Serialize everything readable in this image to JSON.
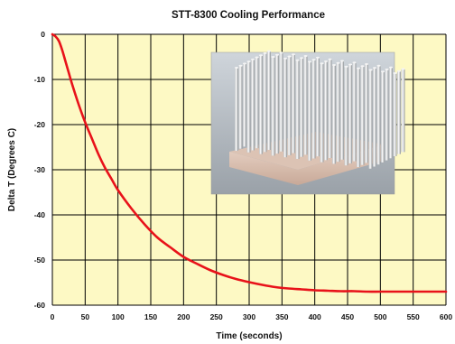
{
  "chart_data": {
    "type": "line",
    "title": "STT-8300 Cooling Performance",
    "xlabel": "Time (seconds)",
    "ylabel": "Delta T (Degrees C)",
    "xlim": [
      0,
      600
    ],
    "ylim": [
      -60,
      0
    ],
    "xticks": [
      0,
      50,
      100,
      150,
      200,
      250,
      300,
      350,
      400,
      450,
      500,
      550,
      600
    ],
    "yticks": [
      0,
      -10,
      -20,
      -30,
      -40,
      -50,
      -60
    ],
    "grid": true,
    "plot_background": "#fdf9c4",
    "series": [
      {
        "color": "#e8121a",
        "x": [
          0,
          5,
          10,
          15,
          20,
          25,
          30,
          40,
          50,
          60,
          70,
          80,
          90,
          100,
          120,
          140,
          160,
          180,
          200,
          220,
          240,
          260,
          280,
          300,
          320,
          340,
          360,
          380,
          400,
          420,
          440,
          460,
          480,
          500,
          520,
          540,
          560,
          580,
          600
        ],
        "y": [
          0,
          -0.5,
          -1.5,
          -3.5,
          -6,
          -8.5,
          -11,
          -15.5,
          -19.5,
          -23,
          -26.5,
          -29.5,
          -32,
          -34.5,
          -38.5,
          -42,
          -45,
          -47.2,
          -49.3,
          -50.8,
          -52.2,
          -53.3,
          -54.2,
          -54.9,
          -55.5,
          -56,
          -56.3,
          -56.5,
          -56.7,
          -56.8,
          -56.9,
          -56.9,
          -57,
          -57,
          -57,
          -57,
          -57,
          -57,
          -57
        ]
      }
    ],
    "inset_image": "photo of pin-fin aluminum heat sink"
  }
}
